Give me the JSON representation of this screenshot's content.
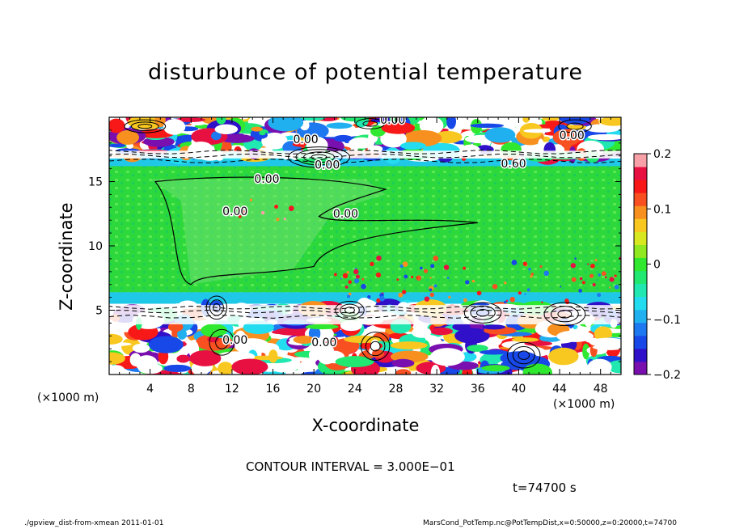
{
  "footer": {
    "left": "./gpview_dist-from-xmean  2011-01-01",
    "right": "MarsCond_PotTemp.nc@PotTempDist,x=0:50000,z=0:20000,t=74700"
  },
  "chart_data": {
    "type": "heatmap",
    "title": "disturbunce of potential temperature",
    "xlabel": "X-coordinate",
    "ylabel": "Z-coordinate",
    "x_unit": "(×1000 m)",
    "z_unit": "(×1000 m)",
    "xlim": [
      0,
      50
    ],
    "ylim": [
      0,
      20
    ],
    "x_ticks": [
      "4",
      "8",
      "12",
      "16",
      "20",
      "24",
      "28",
      "32",
      "36",
      "40",
      "44",
      "48"
    ],
    "x_tick_values": [
      4,
      8,
      12,
      16,
      20,
      24,
      28,
      32,
      36,
      40,
      44,
      48
    ],
    "y_ticks": [
      "5",
      "10",
      "15"
    ],
    "y_tick_values": [
      5,
      10,
      15
    ],
    "colorbar": {
      "range": [
        -0.2,
        0.2
      ],
      "ticks": [
        "0.2",
        "0.1",
        "0",
        "−0.1",
        "−0.2"
      ],
      "tick_values": [
        0.2,
        0.1,
        0,
        -0.1,
        -0.2
      ],
      "colors": [
        "#7a0fb0",
        "#3010c8",
        "#1848e8",
        "#1e78f0",
        "#20b0f0",
        "#24dcf0",
        "#20e8b0",
        "#20e870",
        "#30e830",
        "#90e820",
        "#d8e820",
        "#f8c820",
        "#f89020",
        "#f85020",
        "#f81818",
        "#e81040",
        "#f8a0a8"
      ]
    },
    "contour_labels": [
      {
        "text": "0.00",
        "x": 15.4,
        "z": 14.9
      },
      {
        "text": "0.00",
        "x": 23.1,
        "z": 12.2
      },
      {
        "text": "0.60",
        "x": 39.5,
        "z": 16.1
      },
      {
        "text": "0.00",
        "x": 19.2,
        "z": 18.0
      },
      {
        "text": "0.00",
        "x": 45.2,
        "z": 18.3
      },
      {
        "text": "0.00",
        "x": 27.7,
        "z": 19.5
      },
      {
        "text": "0.00",
        "x": 21.3,
        "z": 16.0
      },
      {
        "text": "0.00",
        "x": 12.3,
        "z": 12.4
      },
      {
        "text": "0.00",
        "x": 12.3,
        "z": 2.4
      },
      {
        "text": "0.00",
        "x": 21.0,
        "z": 2.2
      }
    ],
    "contour_interval_text": "CONTOUR INTERVAL = 3.000E−01",
    "time_text": "t=74700 s"
  }
}
